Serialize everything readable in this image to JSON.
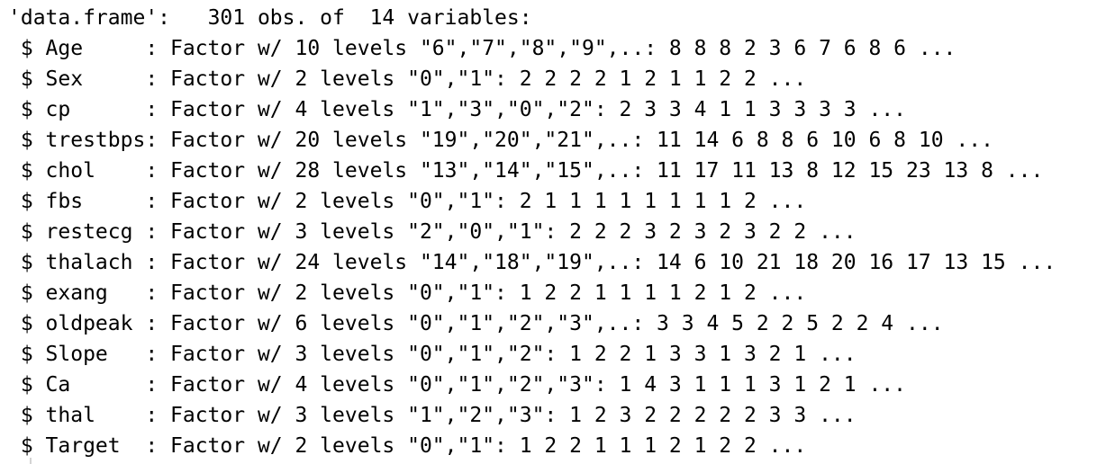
{
  "console": {
    "header": "'data.frame':\t301 obs. of  14 variables:",
    "lines": [
      " $ Age     : Factor w/ 10 levels \"6\",\"7\",\"8\",\"9\",..: 8 8 8 2 3 6 7 6 8 6 ...",
      " $ Sex     : Factor w/ 2 levels \"0\",\"1\": 2 2 2 2 1 2 1 1 2 2 ...",
      " $ cp      : Factor w/ 4 levels \"1\",\"3\",\"0\",\"2\": 2 3 3 4 1 1 3 3 3 3 ...",
      " $ trestbps: Factor w/ 20 levels \"19\",\"20\",\"21\",..: 11 14 6 8 8 6 10 6 8 10 ...",
      " $ chol    : Factor w/ 28 levels \"13\",\"14\",\"15\",..: 11 17 11 13 8 12 15 23 13 8 ...",
      " $ fbs     : Factor w/ 2 levels \"0\",\"1\": 2 1 1 1 1 1 1 1 1 2 ...",
      " $ restecg : Factor w/ 3 levels \"2\",\"0\",\"1\": 2 2 2 3 2 3 2 3 2 2 ...",
      " $ thalach : Factor w/ 24 levels \"14\",\"18\",\"19\",..: 14 6 10 21 18 20 16 17 13 15 ...",
      " $ exang   : Factor w/ 2 levels \"0\",\"1\": 1 2 2 1 1 1 1 2 1 2 ...",
      " $ oldpeak : Factor w/ 6 levels \"0\",\"1\",\"2\",\"3\",..: 3 3 4 5 2 2 5 2 2 4 ...",
      " $ Slope   : Factor w/ 3 levels \"0\",\"1\",\"2\": 1 2 2 1 3 3 1 3 2 1 ...",
      " $ Ca      : Factor w/ 4 levels \"0\",\"1\",\"2\",\"3\": 1 4 3 1 1 1 3 1 2 1 ...",
      " $ thal    : Factor w/ 3 levels \"1\",\"2\",\"3\": 1 2 3 2 2 2 2 2 3 3 ...",
      " $ Target  : Factor w/ 2 levels \"0\",\"1\": 1 2 2 1 1 1 2 1 2 2 ..."
    ]
  },
  "colors": {
    "text": "#000000",
    "background": "#ffffff"
  }
}
